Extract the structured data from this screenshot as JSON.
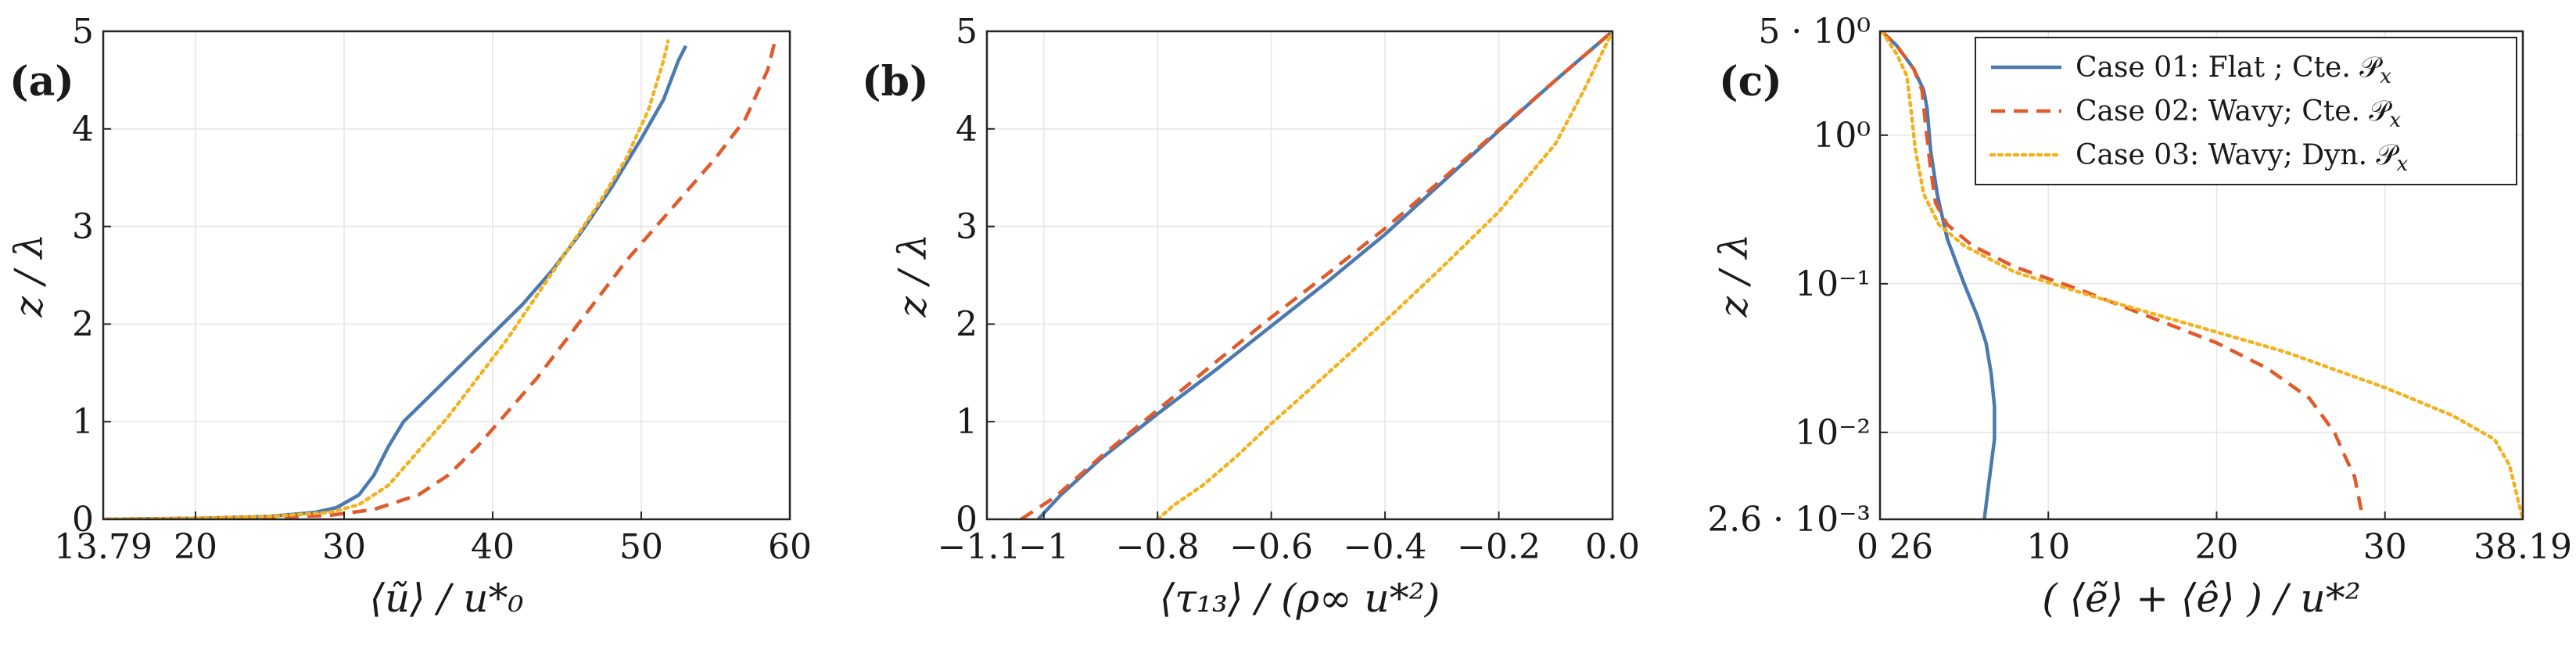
{
  "colors": {
    "case01": "#4a7ab0",
    "case02": "#e05a2b",
    "case03": "#f2b21f",
    "grid": "#e6e6e6",
    "axis": "#262626"
  },
  "legend": {
    "entries": [
      {
        "series": "Case 01",
        "label": "Case 01:  Flat  ;  Cte.  𝒫",
        "sub": "x"
      },
      {
        "series": "Case 02",
        "label": "Case 02:  Wavy;  Cte.  𝒫",
        "sub": "x"
      },
      {
        "series": "Case 03",
        "label": "Case 03:  Wavy;  Dyn.  𝒫",
        "sub": "x"
      }
    ]
  },
  "chart_data": [
    {
      "type": "line",
      "panel_label": "(a)",
      "xlabel": "⟨ũ⟩ / u*₀",
      "ylabel": "z / λ",
      "xlim": [
        13.79,
        60
      ],
      "ylim": [
        0,
        5
      ],
      "xticks": [
        13.79,
        20,
        30,
        40,
        50,
        60
      ],
      "xtick_labels": [
        "13.79",
        "20",
        "30",
        "40",
        "50",
        "60"
      ],
      "yticks": [
        0,
        1,
        2,
        3,
        4,
        5
      ],
      "ytick_labels": [
        "0",
        "1",
        "2",
        "3",
        "4",
        "5"
      ],
      "grid": true,
      "series": [
        {
          "name": "Case 01",
          "style": "solid",
          "points": [
            [
              13.79,
              0
            ],
            [
              20,
              0.01
            ],
            [
              25,
              0.03
            ],
            [
              28,
              0.07
            ],
            [
              29.5,
              0.12
            ],
            [
              31,
              0.25
            ],
            [
              32,
              0.45
            ],
            [
              33,
              0.75
            ],
            [
              34,
              1.0
            ],
            [
              36,
              1.3
            ],
            [
              38,
              1.6
            ],
            [
              40,
              1.9
            ],
            [
              42,
              2.2
            ],
            [
              44,
              2.55
            ],
            [
              46,
              2.95
            ],
            [
              48,
              3.4
            ],
            [
              50,
              3.9
            ],
            [
              51.5,
              4.3
            ],
            [
              52.5,
              4.7
            ],
            [
              53,
              4.85
            ]
          ]
        },
        {
          "name": "Case 02",
          "style": "dashed",
          "points": [
            [
              13.79,
              0
            ],
            [
              20,
              0.01
            ],
            [
              25,
              0.02
            ],
            [
              29,
              0.04
            ],
            [
              32,
              0.1
            ],
            [
              35,
              0.25
            ],
            [
              37,
              0.45
            ],
            [
              39,
              0.75
            ],
            [
              41,
              1.1
            ],
            [
              43,
              1.45
            ],
            [
              45,
              1.85
            ],
            [
              47,
              2.25
            ],
            [
              49,
              2.65
            ],
            [
              51,
              3.0
            ],
            [
              53,
              3.35
            ],
            [
              55,
              3.7
            ],
            [
              57,
              4.1
            ],
            [
              58.5,
              4.6
            ],
            [
              59,
              4.9
            ]
          ]
        },
        {
          "name": "Case 03",
          "style": "dotted",
          "points": [
            [
              13.79,
              0
            ],
            [
              20,
              0.01
            ],
            [
              25,
              0.03
            ],
            [
              29,
              0.07
            ],
            [
              31,
              0.15
            ],
            [
              33,
              0.35
            ],
            [
              35,
              0.7
            ],
            [
              37,
              1.05
            ],
            [
              39,
              1.45
            ],
            [
              41,
              1.85
            ],
            [
              43,
              2.3
            ],
            [
              45,
              2.75
            ],
            [
              47,
              3.2
            ],
            [
              49,
              3.7
            ],
            [
              50.5,
              4.2
            ],
            [
              51.5,
              4.7
            ],
            [
              51.8,
              4.9
            ]
          ]
        }
      ]
    },
    {
      "type": "line",
      "panel_label": "(b)",
      "xlabel": "⟨τ₁₃⟩ / (ρ∞ u*²)",
      "ylabel": "z / λ",
      "xlim": [
        -1.1,
        0.0
      ],
      "ylim": [
        0,
        5
      ],
      "xticks": [
        -1.1,
        -1.0,
        -0.8,
        -0.6,
        -0.4,
        -0.2,
        0.0
      ],
      "xtick_labels": [
        "−1.1",
        "−1",
        "−0.8",
        "−0.6",
        "−0.4",
        "−0.2",
        "0.0"
      ],
      "yticks": [
        0,
        1,
        2,
        3,
        4,
        5
      ],
      "ytick_labels": [
        "0",
        "1",
        "2",
        "3",
        "4",
        "5"
      ],
      "grid": true,
      "series": [
        {
          "name": "Case 01",
          "style": "solid",
          "points": [
            [
              -1.01,
              0
            ],
            [
              -0.97,
              0.25
            ],
            [
              -0.9,
              0.62
            ],
            [
              -0.8,
              1.08
            ],
            [
              -0.7,
              1.52
            ],
            [
              -0.6,
              1.98
            ],
            [
              -0.5,
              2.44
            ],
            [
              -0.4,
              2.92
            ],
            [
              -0.3,
              3.45
            ],
            [
              -0.2,
              3.98
            ],
            [
              -0.1,
              4.5
            ],
            [
              0,
              5
            ]
          ]
        },
        {
          "name": "Case 02",
          "style": "dashed",
          "points": [
            [
              -1.04,
              0
            ],
            [
              -0.98,
              0.23
            ],
            [
              -0.9,
              0.64
            ],
            [
              -0.8,
              1.12
            ],
            [
              -0.7,
              1.6
            ],
            [
              -0.6,
              2.07
            ],
            [
              -0.5,
              2.52
            ],
            [
              -0.4,
              2.98
            ],
            [
              -0.3,
              3.48
            ],
            [
              -0.2,
              3.99
            ],
            [
              -0.1,
              4.5
            ],
            [
              0,
              5
            ]
          ]
        },
        {
          "name": "Case 03",
          "style": "dotted",
          "points": [
            [
              -0.8,
              0
            ],
            [
              -0.77,
              0.15
            ],
            [
              -0.72,
              0.35
            ],
            [
              -0.66,
              0.65
            ],
            [
              -0.6,
              0.98
            ],
            [
              -0.5,
              1.5
            ],
            [
              -0.4,
              2.03
            ],
            [
              -0.3,
              2.58
            ],
            [
              -0.2,
              3.15
            ],
            [
              -0.1,
              3.85
            ],
            [
              -0.05,
              4.4
            ],
            [
              0,
              5
            ]
          ]
        }
      ]
    },
    {
      "type": "line",
      "panel_label": "(c)",
      "xlabel": "( ⟨ẽ⟩ + ⟨ê⟩ ) / u*²",
      "ylabel": "z / λ",
      "xlim": [
        0,
        38.19
      ],
      "ylim": [
        0.0026,
        5
      ],
      "yscale": "log",
      "xticks": [
        0,
        10,
        20,
        30,
        38.19
      ],
      "xtick_labels": [
        "0 26",
        "10",
        "20",
        "30",
        "38.19"
      ],
      "yticks": [
        0.0026,
        0.01,
        0.1,
        1,
        5
      ],
      "ytick_labels": [
        "2.6 · 10⁻³",
        "10⁻²",
        "10⁻¹",
        "10⁰",
        "5 · 10⁰"
      ],
      "grid": true,
      "legend_position": "top-right",
      "series": [
        {
          "name": "Case 01",
          "style": "solid",
          "points": [
            [
              0.1,
              5
            ],
            [
              1,
              4
            ],
            [
              2,
              2.8
            ],
            [
              2.6,
              2
            ],
            [
              2.8,
              1.5
            ],
            [
              3,
              0.8
            ],
            [
              3.4,
              0.4
            ],
            [
              4,
              0.2
            ],
            [
              5,
              0.1
            ],
            [
              5.8,
              0.06
            ],
            [
              6.3,
              0.04
            ],
            [
              6.6,
              0.025
            ],
            [
              6.8,
              0.015
            ],
            [
              6.8,
              0.009
            ],
            [
              6.6,
              0.006
            ],
            [
              6.4,
              0.004
            ],
            [
              6.2,
              0.0026
            ]
          ]
        },
        {
          "name": "Case 02",
          "style": "dashed",
          "points": [
            [
              0.1,
              5
            ],
            [
              1,
              4
            ],
            [
              2,
              2.8
            ],
            [
              2.5,
              2
            ],
            [
              2.7,
              1.2
            ],
            [
              3,
              0.6
            ],
            [
              3.3,
              0.35
            ],
            [
              4,
              0.25
            ],
            [
              5.5,
              0.18
            ],
            [
              8,
              0.13
            ],
            [
              12,
              0.09
            ],
            [
              16,
              0.06
            ],
            [
              20,
              0.04
            ],
            [
              23,
              0.027
            ],
            [
              25.5,
              0.017
            ],
            [
              27,
              0.01
            ],
            [
              27.6,
              0.007
            ],
            [
              28.2,
              0.005
            ],
            [
              28.7,
              0.0026
            ]
          ]
        },
        {
          "name": "Case 03",
          "style": "dotted",
          "points": [
            [
              0.1,
              5
            ],
            [
              1,
              3.5
            ],
            [
              1.6,
              2.5
            ],
            [
              1.9,
              1.3
            ],
            [
              2.1,
              0.8
            ],
            [
              2.6,
              0.4
            ],
            [
              3.5,
              0.25
            ],
            [
              5,
              0.18
            ],
            [
              8,
              0.12
            ],
            [
              13,
              0.08
            ],
            [
              18,
              0.055
            ],
            [
              24,
              0.035
            ],
            [
              30,
              0.02
            ],
            [
              34,
              0.013
            ],
            [
              36.5,
              0.009
            ],
            [
              37.4,
              0.006
            ],
            [
              38.19,
              0.0026
            ]
          ]
        }
      ]
    }
  ]
}
